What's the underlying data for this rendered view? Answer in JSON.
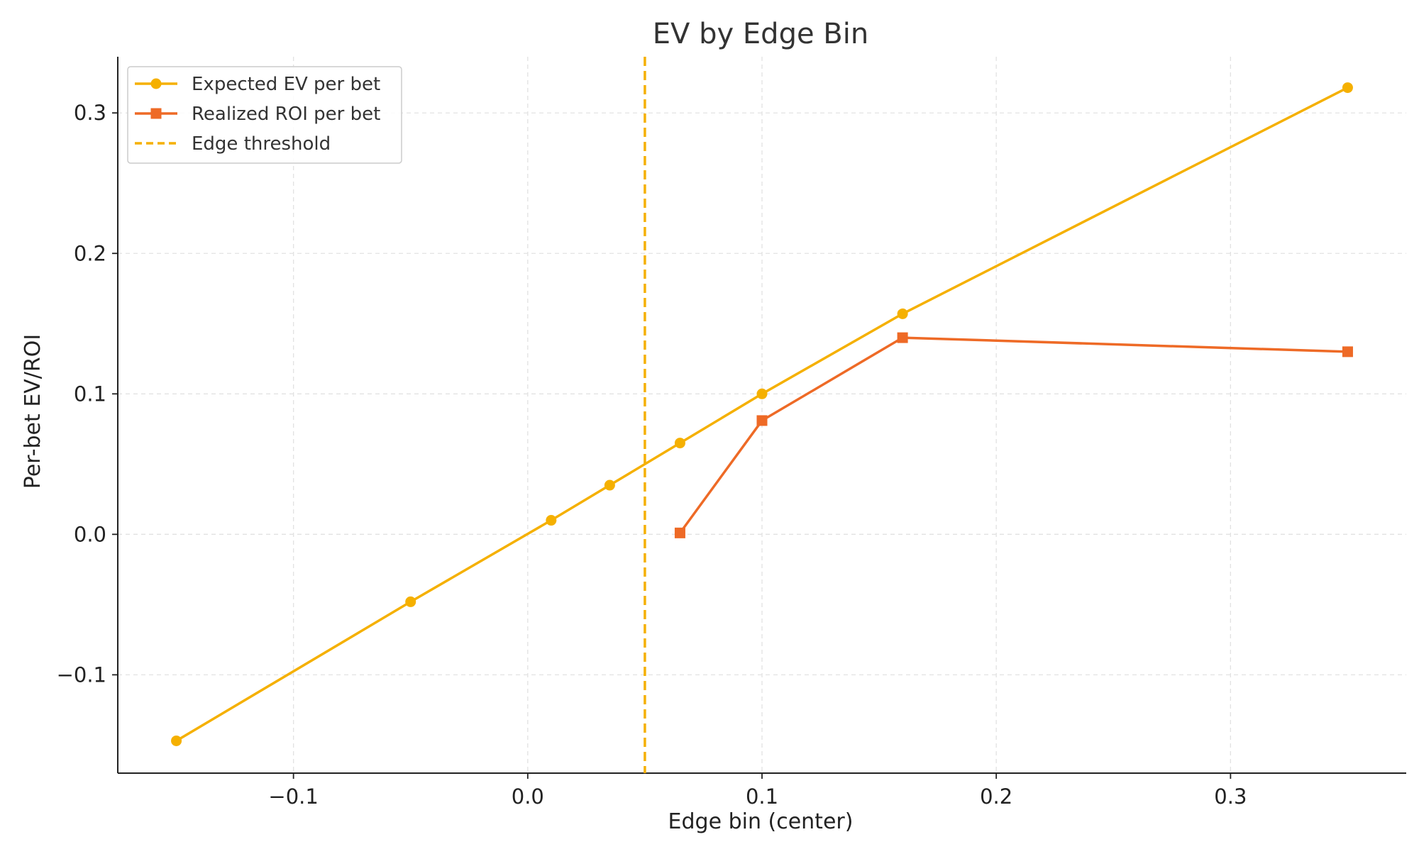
{
  "chart_data": {
    "type": "line",
    "title": "EV by Edge Bin",
    "xlabel": "Edge bin (center)",
    "ylabel": "Per-bet EV/ROI",
    "xlim": [
      -0.175,
      0.375
    ],
    "ylim": [
      -0.17,
      0.34
    ],
    "x_ticks": [
      -0.1,
      0.0,
      0.1,
      0.2,
      0.3
    ],
    "x_tick_labels": [
      "−0.1",
      "0.0",
      "0.1",
      "0.2",
      "0.3"
    ],
    "y_ticks": [
      -0.1,
      0.0,
      0.1,
      0.2,
      0.3
    ],
    "y_tick_labels": [
      "−0.1",
      "0.0",
      "0.1",
      "0.2",
      "0.3"
    ],
    "grid": true,
    "legend_position": "top-left",
    "series": [
      {
        "name": "Expected EV per bet",
        "color": "#F5B000",
        "marker": "circle",
        "x": [
          -0.15,
          -0.05,
          0.01,
          0.035,
          0.065,
          0.1,
          0.16,
          0.35
        ],
        "y": [
          -0.147,
          -0.048,
          0.01,
          0.035,
          0.065,
          0.1,
          0.157,
          0.318
        ]
      },
      {
        "name": "Realized ROI per bet",
        "color": "#EE6A26",
        "marker": "square",
        "x": [
          0.065,
          0.1,
          0.16,
          0.35
        ],
        "y": [
          0.001,
          0.081,
          0.14,
          0.13
        ]
      }
    ],
    "reference_lines": [
      {
        "name": "Edge threshold",
        "orientation": "vertical",
        "x": 0.05,
        "color": "#F5B000",
        "style": "dashed"
      }
    ]
  }
}
